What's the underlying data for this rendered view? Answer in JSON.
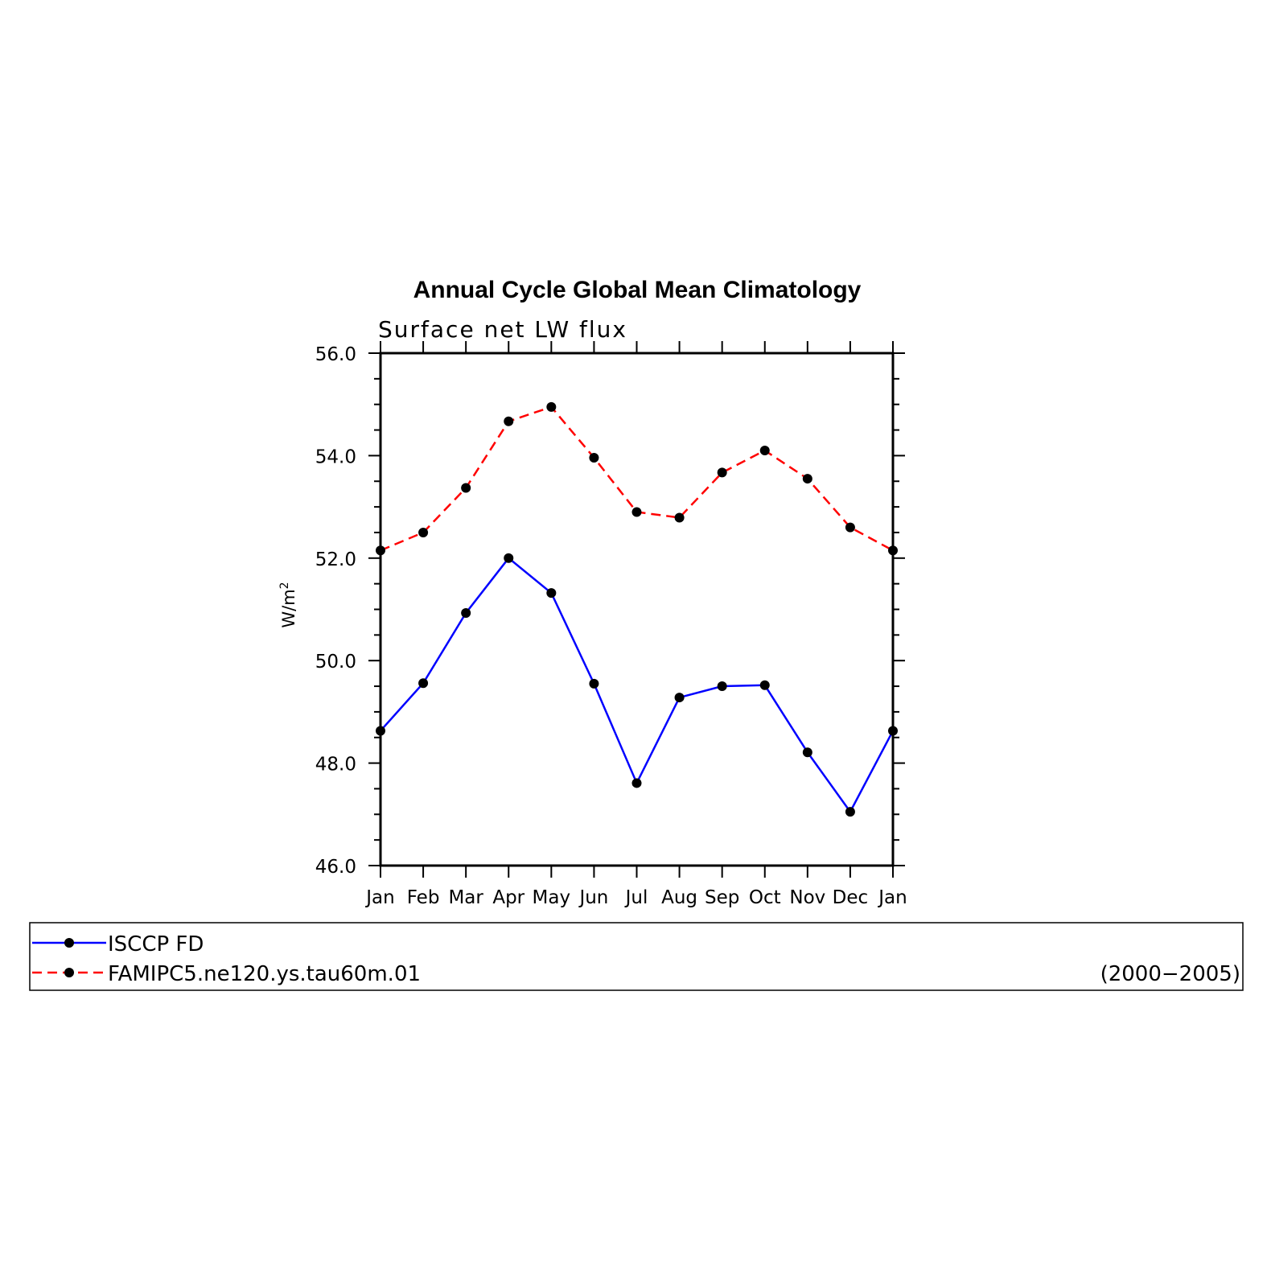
{
  "chart_data": {
    "type": "line",
    "title": "Annual Cycle Global Mean Climatology",
    "subtitle": "Surface net LW flux",
    "ylabel": "W/m",
    "ylabel_sup": "2",
    "xlabel": "",
    "categories": [
      "Jan",
      "Feb",
      "Mar",
      "Apr",
      "May",
      "Jun",
      "Jul",
      "Aug",
      "Sep",
      "Oct",
      "Nov",
      "Dec",
      "Jan"
    ],
    "ylim": [
      46.0,
      56.0
    ],
    "yticks": [
      "46.0",
      "48.0",
      "50.0",
      "52.0",
      "54.0",
      "56.0"
    ],
    "grid": false,
    "legend_position": "bottom",
    "series": [
      {
        "name": "ISCCP FD",
        "color": "#0000ff",
        "dash": "solid",
        "values": [
          48.63,
          49.56,
          50.93,
          52.0,
          51.32,
          49.55,
          47.61,
          49.28,
          49.5,
          49.52,
          48.21,
          47.05,
          48.63
        ]
      },
      {
        "name": "FAMIPC5.ne120.ys.tau60m.01",
        "color": "#ff0000",
        "dash": "dashed",
        "values": [
          52.15,
          52.5,
          53.37,
          54.67,
          54.95,
          53.96,
          52.9,
          52.79,
          53.67,
          54.1,
          53.55,
          52.6,
          52.15
        ]
      }
    ],
    "legend_note": "(2000−2005)"
  }
}
